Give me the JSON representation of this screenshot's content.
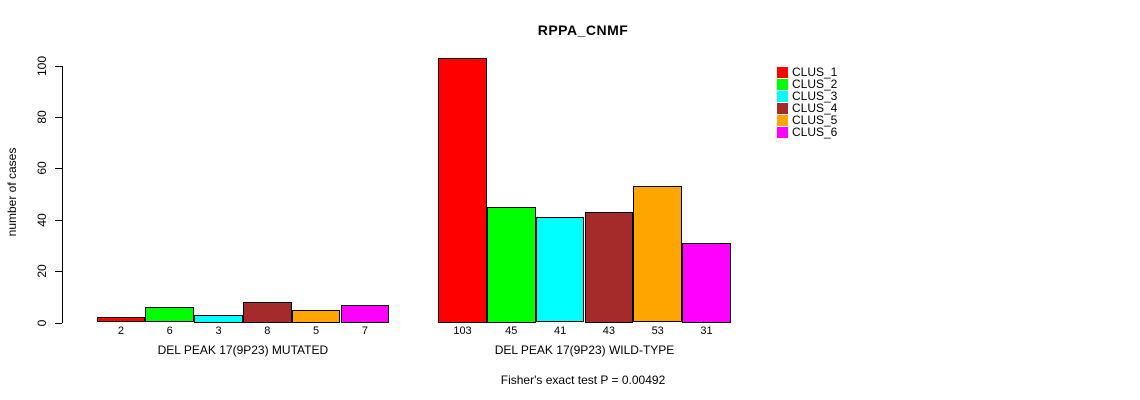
{
  "chart_data": {
    "type": "bar",
    "title": "RPPA_CNMF",
    "ylabel": "number of cases",
    "ylim": [
      0,
      100
    ],
    "yticks": [
      0,
      20,
      40,
      60,
      80,
      100
    ],
    "grid": false,
    "legend_position": "right",
    "legend": [
      {
        "label": "CLUS_1",
        "color": "#FF0000"
      },
      {
        "label": "CLUS_2",
        "color": "#00FF00"
      },
      {
        "label": "CLUS_3",
        "color": "#00FFFF"
      },
      {
        "label": "CLUS_4",
        "color": "#A52A2A"
      },
      {
        "label": "CLUS_5",
        "color": "#FFA500"
      },
      {
        "label": "CLUS_6",
        "color": "#FF00FF"
      }
    ],
    "series_colors": [
      "#FF0000",
      "#00FF00",
      "#00FFFF",
      "#A52A2A",
      "#FFA500",
      "#FF00FF"
    ],
    "groups": [
      {
        "label": "DEL PEAK 17(9P23) MUTATED",
        "values": [
          2,
          6,
          3,
          8,
          5,
          7
        ]
      },
      {
        "label": "DEL PEAK 17(9P23) WILD-TYPE",
        "values": [
          103,
          45,
          41,
          43,
          53,
          31
        ]
      }
    ],
    "bar_value_labels_shown": true,
    "annotation": "Fisher's exact test P = 0.00492",
    "colors": {
      "background": "#FFFFFF",
      "axis": "#000000",
      "text": "#000000",
      "bar_border": "#000000"
    }
  }
}
